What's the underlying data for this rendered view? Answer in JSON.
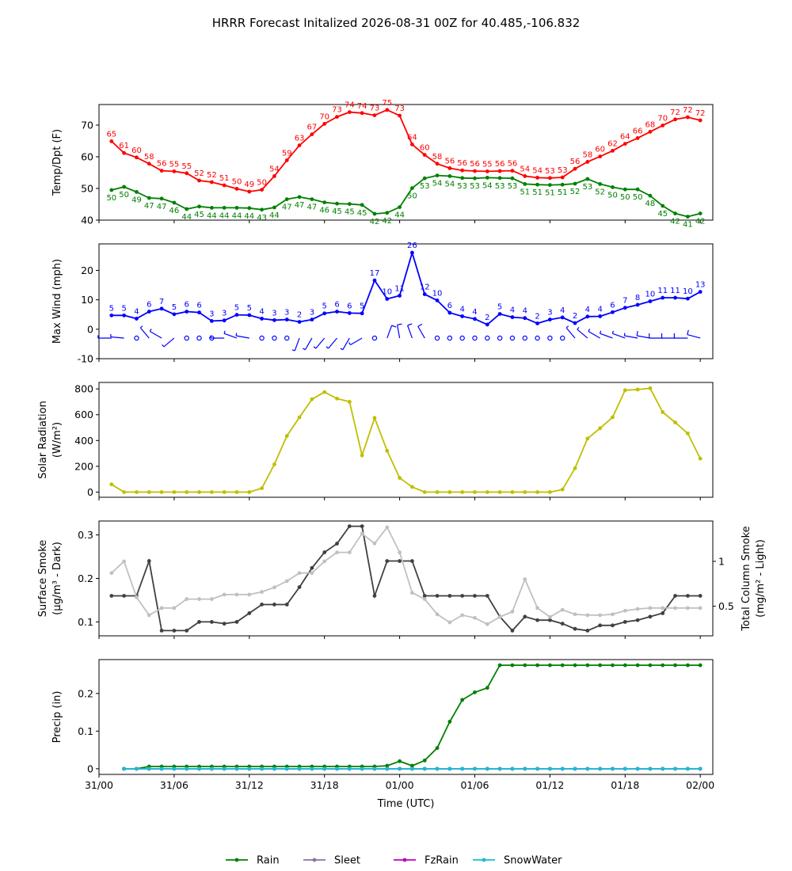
{
  "title": "HRRR Forecast Initalized 2026-08-31 00Z for 40.485,-106.832",
  "time_axis": {
    "label": "Time (UTC)",
    "ticks": [
      {
        "hour": 0,
        "label": "31/00"
      },
      {
        "hour": 6,
        "label": "31/06"
      },
      {
        "hour": 12,
        "label": "31/12"
      },
      {
        "hour": 18,
        "label": "31/18"
      },
      {
        "hour": 24,
        "label": "01/00"
      },
      {
        "hour": 30,
        "label": "01/06"
      },
      {
        "hour": 36,
        "label": "01/12"
      },
      {
        "hour": 42,
        "label": "01/18"
      },
      {
        "hour": 48,
        "label": "02/00"
      }
    ],
    "range": [
      0,
      49
    ]
  },
  "colors": {
    "temp": "#ff0000",
    "dewpoint": "#008000",
    "wind": "#0000ff",
    "solar": "#bfbf00",
    "smoke_dark": "#404040",
    "smoke_light": "#c0c0c0",
    "rain": "#008000",
    "sleet": "#8c72a0",
    "fzrain": "#bf00bf",
    "snowwater": "#17becf"
  },
  "chart_data": [
    {
      "type": "line",
      "name": "temp-dewpoint",
      "ylabel": "Temp/Dpt (F)",
      "ylim": [
        40,
        76.5
      ],
      "yticks": [
        40,
        50,
        60,
        70
      ],
      "grid": false,
      "x_hours": [
        1,
        2,
        3,
        4,
        5,
        6,
        7,
        8,
        9,
        10,
        11,
        12,
        13,
        14,
        15,
        16,
        17,
        18,
        19,
        20,
        21,
        22,
        23,
        24,
        25,
        26,
        27,
        28,
        29,
        30,
        31,
        32,
        33,
        34,
        35,
        36,
        37,
        38,
        39,
        40,
        41,
        42,
        43,
        44,
        45,
        46,
        47,
        48
      ],
      "series": [
        {
          "key": "temp",
          "values": [
            65,
            61,
            60,
            58,
            56,
            55,
            55,
            52,
            52,
            51,
            50,
            49,
            50,
            54,
            59,
            63,
            67,
            70,
            73,
            74,
            74,
            73,
            75,
            73,
            64,
            60,
            58,
            56,
            56,
            56,
            55,
            56,
            56,
            54,
            54,
            53,
            53,
            56,
            58,
            60,
            62,
            64,
            66,
            68,
            70,
            72,
            72,
            72
          ],
          "plot": [
            64.9,
            61.2,
            59.8,
            57.8,
            55.6,
            55.4,
            54.8,
            52.5,
            52.0,
            51.0,
            49.9,
            49.0,
            49.6,
            53.9,
            58.9,
            63.6,
            67.1,
            70.4,
            72.6,
            74.1,
            73.8,
            73.1,
            74.8,
            73.0,
            63.9,
            60.6,
            57.8,
            56.4,
            55.7,
            55.5,
            55.4,
            55.5,
            55.6,
            53.9,
            53.4,
            53.3,
            53.5,
            56.2,
            58.4,
            60.1,
            61.9,
            64.1,
            65.9,
            67.9,
            69.9,
            71.8,
            72.5,
            71.5
          ]
        },
        {
          "key": "dewpoint",
          "values": [
            50,
            50,
            49,
            47,
            47,
            46,
            44,
            45,
            44,
            44,
            44,
            44,
            43,
            44,
            47,
            47,
            47,
            46,
            45,
            45,
            45,
            42,
            42,
            44,
            50,
            53,
            54,
            54,
            53,
            53,
            54,
            53,
            53,
            51,
            51,
            51,
            51,
            52,
            53,
            52,
            50,
            50,
            50,
            48,
            45,
            42,
            41,
            42
          ],
          "plot": [
            49.5,
            50.5,
            48.9,
            47.0,
            46.8,
            45.5,
            43.5,
            44.3,
            43.9,
            43.9,
            43.9,
            43.8,
            43.3,
            44.0,
            46.6,
            47.3,
            46.6,
            45.6,
            45.2,
            45.1,
            44.8,
            42.0,
            42.3,
            44.1,
            50.1,
            53.2,
            54.1,
            53.9,
            53.3,
            53.2,
            53.4,
            53.3,
            53.2,
            51.4,
            51.2,
            51.1,
            51.2,
            51.5,
            53.0,
            51.4,
            50.4,
            49.7,
            49.7,
            47.7,
            44.5,
            42.1,
            41.1,
            42.1
          ]
        }
      ]
    },
    {
      "type": "line",
      "name": "max-wind",
      "ylabel": "Max Wind (mph)",
      "ylim": [
        -10,
        29
      ],
      "yticks": [
        -10,
        0,
        10,
        20
      ],
      "grid": false,
      "x_hours": [
        1,
        2,
        3,
        4,
        5,
        6,
        7,
        8,
        9,
        10,
        11,
        12,
        13,
        14,
        15,
        16,
        17,
        18,
        19,
        20,
        21,
        22,
        23,
        24,
        25,
        26,
        27,
        28,
        29,
        30,
        31,
        32,
        33,
        34,
        35,
        36,
        37,
        38,
        39,
        40,
        41,
        42,
        43,
        44,
        45,
        46,
        47,
        48
      ],
      "series": [
        {
          "key": "wind",
          "values": [
            5,
            5,
            4,
            6,
            7,
            5,
            6,
            6,
            3,
            3,
            5,
            5,
            4,
            3,
            3,
            2,
            3,
            5,
            6,
            6,
            5,
            17,
            10,
            11,
            26,
            12,
            10,
            6,
            4,
            4,
            2,
            5,
            4,
            4,
            2,
            3,
            4,
            2,
            4,
            4,
            6,
            7,
            8,
            10,
            11,
            11,
            10,
            13
          ],
          "plot": [
            4.7,
            4.7,
            3.6,
            6.0,
            7.0,
            5.1,
            6.0,
            5.7,
            2.8,
            3.0,
            4.9,
            4.8,
            3.6,
            3.1,
            3.3,
            2.5,
            3.3,
            5.4,
            6.0,
            5.5,
            5.4,
            16.6,
            10.3,
            11.4,
            26.0,
            11.9,
            9.8,
            5.6,
            4.4,
            3.5,
            1.6,
            5.2,
            4.1,
            3.8,
            2.0,
            3.3,
            4.0,
            2.1,
            4.3,
            4.4,
            5.8,
            7.3,
            8.3,
            9.5,
            10.7,
            10.7,
            10.4,
            12.7
          ]
        }
      ],
      "barbs_dir_deg": [
        270,
        275,
        null,
        320,
        300,
        230,
        null,
        null,
        null,
        270,
        290,
        280,
        null,
        null,
        null,
        200,
        210,
        220,
        220,
        210,
        240,
        null,
        20,
        350,
        340,
        330,
        null,
        null,
        null,
        null,
        null,
        null,
        null,
        null,
        null,
        null,
        null,
        320,
        310,
        300,
        290,
        290,
        280,
        280,
        270,
        270,
        270,
        285
      ]
    },
    {
      "type": "line",
      "name": "solar-radiation",
      "ylabel": "Solar Radiation",
      "ylabel_units": "(W/m²)",
      "ylim": [
        -40,
        850
      ],
      "yticks": [
        0,
        200,
        400,
        600,
        800
      ],
      "grid": false,
      "x_hours": [
        1,
        2,
        3,
        4,
        5,
        6,
        7,
        8,
        9,
        10,
        11,
        12,
        13,
        14,
        15,
        16,
        17,
        18,
        19,
        20,
        21,
        22,
        23,
        24,
        25,
        26,
        27,
        28,
        29,
        30,
        31,
        32,
        33,
        34,
        35,
        36,
        37,
        38,
        39,
        40,
        41,
        42,
        43,
        44,
        45,
        46,
        47,
        48
      ],
      "series": [
        {
          "key": "solar",
          "values": [
            60,
            0,
            0,
            0,
            0,
            0,
            0,
            0,
            0,
            0,
            0,
            0,
            30,
            215,
            435,
            580,
            720,
            775,
            725,
            700,
            285,
            575,
            320,
            110,
            40,
            0,
            0,
            0,
            0,
            0,
            0,
            0,
            0,
            0,
            0,
            0,
            20,
            185,
            415,
            495,
            580,
            790,
            795,
            805,
            620,
            540,
            455,
            260
          ]
        }
      ]
    },
    {
      "type": "line",
      "name": "smoke",
      "ylabel": "Surface Smoke",
      "ylabel_units": "(μg/m³ - Dark)",
      "ylabel_right": "Total Column Smoke",
      "ylabel_right_units": "(mg/m² - Light)",
      "ylim": [
        0.068,
        0.332
      ],
      "yticks": [
        0.1,
        0.2,
        0.3
      ],
      "ylim_right": [
        0.17,
        1.45
      ],
      "yticks_right": [
        0.5,
        1.0
      ],
      "grid": false,
      "x_hours": [
        1,
        2,
        3,
        4,
        5,
        6,
        7,
        8,
        9,
        10,
        11,
        12,
        13,
        14,
        15,
        16,
        17,
        18,
        19,
        20,
        21,
        22,
        23,
        24,
        25,
        26,
        27,
        28,
        29,
        30,
        31,
        32,
        33,
        34,
        35,
        36,
        37,
        38,
        39,
        40,
        41,
        42,
        43,
        44,
        45,
        46,
        47,
        48
      ],
      "series": [
        {
          "key": "smoke_dark",
          "axis": "left",
          "values": [
            0.16,
            0.16,
            0.16,
            0.24,
            0.08,
            0.08,
            0.08,
            0.1,
            0.1,
            0.096,
            0.1,
            0.12,
            0.14,
            0.14,
            0.14,
            0.18,
            0.224,
            0.26,
            0.28,
            0.32,
            0.32,
            0.16,
            0.24,
            0.24,
            0.24,
            0.16,
            0.16,
            0.16,
            0.16,
            0.16,
            0.16,
            0.112,
            0.08,
            0.112,
            0.104,
            0.104,
            0.096,
            0.084,
            0.08,
            0.092,
            0.092,
            0.1,
            0.104,
            0.112,
            0.12,
            0.16,
            0.16,
            0.16
          ]
        },
        {
          "key": "smoke_light",
          "axis": "right",
          "values": [
            0.87,
            1.0,
            0.6,
            0.4,
            0.48,
            0.48,
            0.58,
            0.58,
            0.58,
            0.63,
            0.63,
            0.63,
            0.66,
            0.71,
            0.78,
            0.87,
            0.87,
            1.0,
            1.1,
            1.1,
            1.31,
            1.2,
            1.38,
            1.1,
            0.65,
            0.58,
            0.41,
            0.32,
            0.4,
            0.37,
            0.3,
            0.38,
            0.44,
            0.8,
            0.48,
            0.38,
            0.46,
            0.41,
            0.4,
            0.4,
            0.41,
            0.45,
            0.47,
            0.48,
            0.48,
            0.48,
            0.48,
            0.48
          ]
        }
      ]
    },
    {
      "type": "line",
      "name": "precip",
      "ylabel": "Precip (in)",
      "ylim": [
        -0.015,
        0.29
      ],
      "yticks": [
        0.0,
        0.1,
        0.2
      ],
      "grid": false,
      "x_hours": [
        2,
        3,
        4,
        5,
        6,
        7,
        8,
        9,
        10,
        11,
        12,
        13,
        14,
        15,
        16,
        17,
        18,
        19,
        20,
        21,
        22,
        23,
        24,
        25,
        26,
        27,
        28,
        29,
        30,
        31,
        32,
        33,
        34,
        35,
        36,
        37,
        38,
        39,
        40,
        41,
        42,
        43,
        44,
        45,
        46,
        47,
        48
      ],
      "series": [
        {
          "key": "rain",
          "name": "Rain",
          "values": [
            0,
            0,
            0.006,
            0.006,
            0.006,
            0.006,
            0.006,
            0.006,
            0.006,
            0.006,
            0.006,
            0.006,
            0.006,
            0.006,
            0.006,
            0.006,
            0.006,
            0.006,
            0.006,
            0.006,
            0.006,
            0.008,
            0.02,
            0.008,
            0.022,
            0.055,
            0.125,
            0.183,
            0.203,
            0.215,
            0.275,
            0.275,
            0.275,
            0.275,
            0.275,
            0.275,
            0.275,
            0.275,
            0.275,
            0.275,
            0.275,
            0.275,
            0.275,
            0.275,
            0.275,
            0.275,
            0.275
          ]
        },
        {
          "key": "sleet",
          "name": "Sleet",
          "values": [
            0,
            0,
            0,
            0,
            0,
            0,
            0,
            0,
            0,
            0,
            0,
            0,
            0,
            0,
            0,
            0,
            0,
            0,
            0,
            0,
            0,
            0,
            0,
            0,
            0,
            0,
            0,
            0,
            0,
            0,
            0,
            0,
            0,
            0,
            0,
            0,
            0,
            0,
            0,
            0,
            0,
            0,
            0,
            0,
            0,
            0,
            0
          ]
        },
        {
          "key": "fzrain",
          "name": "FzRain",
          "values": [
            0,
            0,
            0,
            0,
            0,
            0,
            0,
            0,
            0,
            0,
            0,
            0,
            0,
            0,
            0,
            0,
            0,
            0,
            0,
            0,
            0,
            0,
            0,
            0,
            0,
            0,
            0,
            0,
            0,
            0,
            0,
            0,
            0,
            0,
            0,
            0,
            0,
            0,
            0,
            0,
            0,
            0,
            0,
            0,
            0,
            0,
            0
          ]
        },
        {
          "key": "snowwater",
          "name": "SnowWater",
          "values": [
            0,
            0,
            0,
            0,
            0,
            0,
            0,
            0,
            0,
            0,
            0,
            0,
            0,
            0,
            0,
            0,
            0,
            0,
            0,
            0,
            0,
            0,
            0,
            0,
            0,
            0,
            0,
            0,
            0,
            0,
            0,
            0,
            0,
            0,
            0,
            0,
            0,
            0,
            0,
            0,
            0,
            0,
            0,
            0,
            0,
            0,
            0
          ]
        }
      ]
    }
  ],
  "legend": {
    "position": "bottom-center",
    "items": [
      {
        "key": "rain",
        "label": "Rain"
      },
      {
        "key": "sleet",
        "label": "Sleet"
      },
      {
        "key": "fzrain",
        "label": "FzRain"
      },
      {
        "key": "snowwater",
        "label": "SnowWater"
      }
    ]
  }
}
